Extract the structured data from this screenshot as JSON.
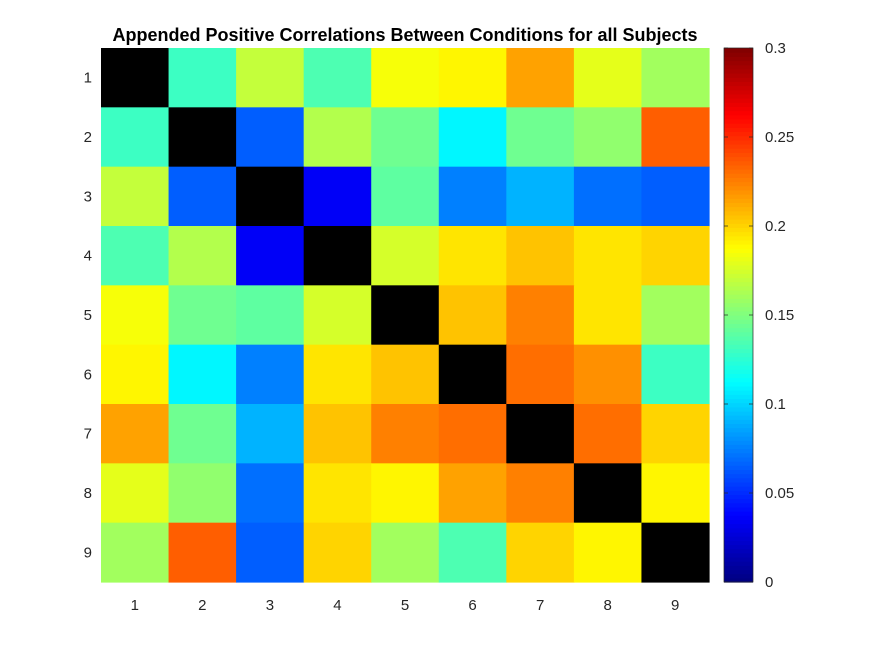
{
  "chart_data": {
    "type": "heatmap",
    "title": "Appended Positive Correlations Between Conditions for all Subjects",
    "xlabel": "",
    "ylabel": "",
    "x_categories": [
      "1",
      "2",
      "3",
      "4",
      "5",
      "6",
      "7",
      "8",
      "9"
    ],
    "y_categories": [
      "1",
      "2",
      "3",
      "4",
      "5",
      "6",
      "7",
      "8",
      "9"
    ],
    "diagonal_color": "#000000",
    "colormap": "jet",
    "clim": [
      0,
      0.3
    ],
    "colorbar": {
      "ticks": [
        0,
        0.05,
        0.1,
        0.15,
        0.2,
        0.25,
        0.3
      ],
      "tick_labels": [
        "0",
        "0.05",
        "0.1",
        "0.15",
        "0.2",
        "0.25",
        "0.3"
      ],
      "location": "right"
    },
    "values": [
      [
        null,
        0.13,
        0.17,
        0.135,
        0.185,
        0.19,
        0.215,
        0.18,
        0.16
      ],
      [
        0.13,
        null,
        0.065,
        0.165,
        0.145,
        0.11,
        0.145,
        0.155,
        0.235
      ],
      [
        0.17,
        0.065,
        null,
        0.035,
        0.14,
        0.075,
        0.09,
        0.07,
        0.065
      ],
      [
        0.135,
        0.165,
        0.035,
        null,
        0.175,
        0.195,
        0.205,
        0.195,
        0.2
      ],
      [
        0.185,
        0.145,
        0.14,
        0.175,
        null,
        0.205,
        0.225,
        0.195,
        0.16
      ],
      [
        0.19,
        0.11,
        0.075,
        0.195,
        0.205,
        null,
        0.23,
        0.22,
        0.13
      ],
      [
        0.215,
        0.145,
        0.09,
        0.205,
        0.225,
        0.23,
        null,
        0.23,
        0.2
      ],
      [
        0.18,
        0.155,
        0.07,
        0.195,
        0.19,
        0.215,
        0.225,
        null,
        0.19
      ],
      [
        0.16,
        0.235,
        0.065,
        0.2,
        0.16,
        0.135,
        0.2,
        0.19,
        null
      ]
    ]
  }
}
